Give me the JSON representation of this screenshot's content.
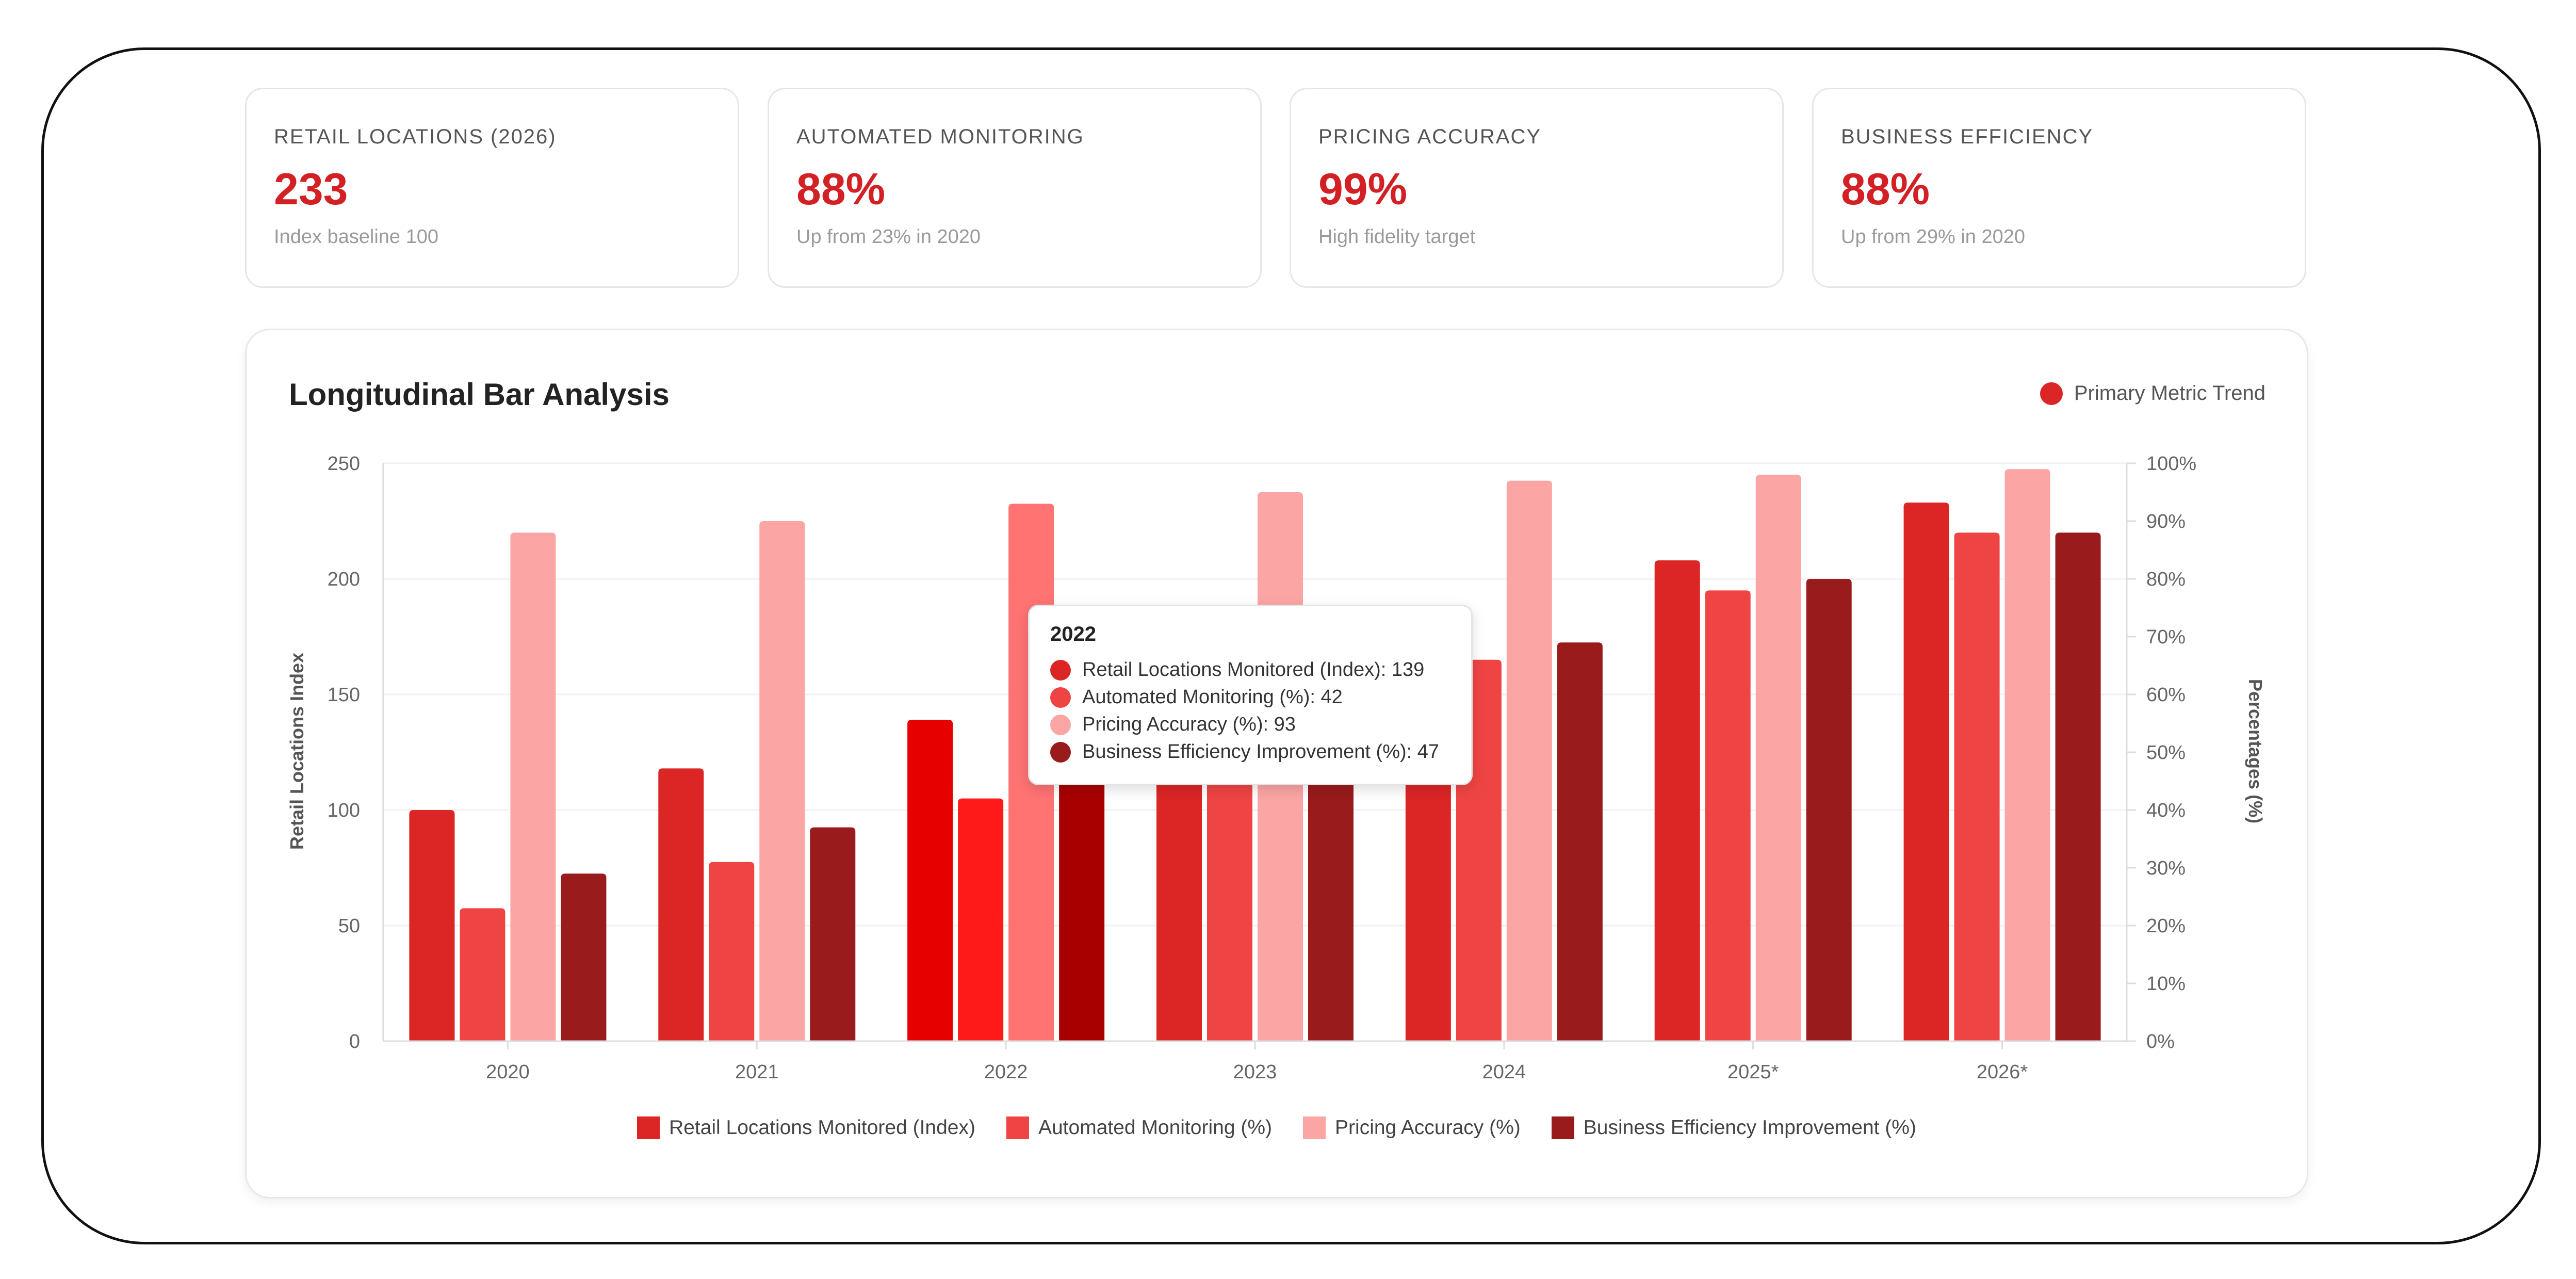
{
  "kpis": [
    {
      "label": "RETAIL LOCATIONS (2026)",
      "value": "233",
      "sub": "Index baseline 100"
    },
    {
      "label": "AUTOMATED MONITORING",
      "value": "88%",
      "sub": "Up from 23% in 2020"
    },
    {
      "label": "PRICING ACCURACY",
      "value": "99%",
      "sub": "High fidelity target"
    },
    {
      "label": "BUSINESS EFFICIENCY",
      "value": "88%",
      "sub": "Up from 29% in 2020"
    }
  ],
  "panel": {
    "title": "Longitudinal Bar Analysis",
    "trend_legend": "Primary Metric Trend",
    "trend_color": "#dc2626"
  },
  "tooltip": {
    "title": "2022",
    "rows": [
      {
        "text": "Retail Locations Monitored (Index): 139",
        "color": "#dc2626"
      },
      {
        "text": "Automated Monitoring (%): 42",
        "color": "#ef4444"
      },
      {
        "text": "Pricing Accuracy (%): 93",
        "color": "#fca5a5"
      },
      {
        "text": "Business Efficiency Improvement (%): 47",
        "color": "#991b1b"
      }
    ]
  },
  "chart_data": {
    "type": "bar",
    "categories": [
      "2020",
      "2021",
      "2022",
      "2023",
      "2024",
      "2025*",
      "2026*"
    ],
    "highlighted_category": "2022",
    "series": [
      {
        "name": "Retail Locations Monitored (Index)",
        "axis": "left",
        "color": "#dc2626",
        "highlight_color": "#e60000",
        "values": [
          100,
          118,
          139,
          155,
          165,
          208,
          233
        ]
      },
      {
        "name": "Automated Monitoring (%)",
        "axis": "right",
        "color": "#ef4444",
        "highlight_color": "#ff1a1a",
        "values": [
          23,
          31,
          42,
          55,
          66,
          78,
          88
        ]
      },
      {
        "name": "Pricing Accuracy (%)",
        "axis": "right",
        "color": "#fca5a5",
        "highlight_color": "#ff7373",
        "values": [
          88,
          90,
          93,
          95,
          97,
          98,
          99
        ]
      },
      {
        "name": "Business Efficiency Improvement (%)",
        "axis": "right",
        "color": "#991b1b",
        "highlight_color": "#a80000",
        "values": [
          29,
          37,
          47,
          58,
          69,
          80,
          88
        ]
      }
    ],
    "left_axis": {
      "label": "Retail Locations Index",
      "range": [
        0,
        250
      ],
      "ticks": [
        "0",
        "50",
        "100",
        "150",
        "200",
        "250"
      ]
    },
    "right_axis": {
      "label": "Percentages (%)",
      "range": [
        0,
        100
      ],
      "ticks": [
        "0%",
        "10%",
        "20%",
        "30%",
        "40%",
        "50%",
        "60%",
        "70%",
        "80%",
        "90%",
        "100%"
      ]
    },
    "grid": true,
    "legend_position": "bottom"
  }
}
